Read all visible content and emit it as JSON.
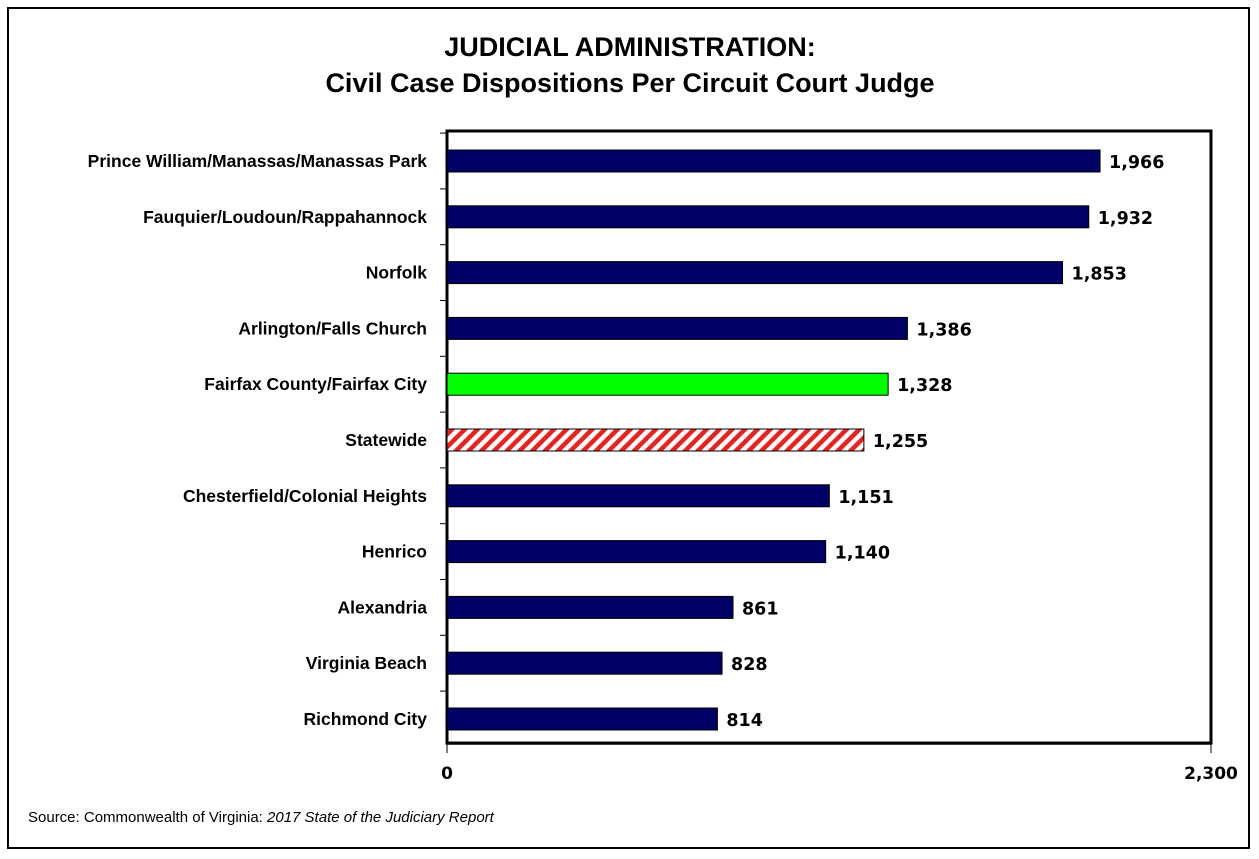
{
  "chart_data": {
    "type": "bar",
    "orientation": "horizontal",
    "title": "JUDICIAL ADMINISTRATION:",
    "subtitle": "Civil Case Dispositions Per Circuit Court Judge",
    "categories": [
      "Prince William/Manassas/Manassas Park",
      "Fauquier/Loudoun/Rappahannock",
      "Norfolk",
      "Arlington/Falls Church",
      "Fairfax County/Fairfax City",
      "Statewide",
      "Chesterfield/Colonial Heights",
      "Henrico",
      "Alexandria",
      "Virginia Beach",
      "Richmond City"
    ],
    "values": [
      1966,
      1932,
      1853,
      1386,
      1328,
      1255,
      1151,
      1140,
      861,
      828,
      814
    ],
    "value_labels": [
      "1,966",
      "1,932",
      "1,853",
      "1,386",
      "1,328",
      "1,255",
      "1,151",
      "1,140",
      "861",
      "828",
      "814"
    ],
    "bar_styles": [
      "navy",
      "navy",
      "navy",
      "navy",
      "green",
      "hatched",
      "navy",
      "navy",
      "navy",
      "navy",
      "navy"
    ],
    "xlim": [
      0,
      2300
    ],
    "xticks": [
      "0",
      "2,300"
    ],
    "grid": false,
    "legend": "none"
  },
  "colors": {
    "default_bar": "#000066",
    "highlight_bar": "#00ff00",
    "hatch_stripe": "#e8221e",
    "hatch_bg": "#ffffff",
    "outline": "#000000"
  },
  "source": {
    "prefix": "Source: Commonwealth of Virginia: ",
    "report": "2017 State of the Judiciary Report"
  }
}
